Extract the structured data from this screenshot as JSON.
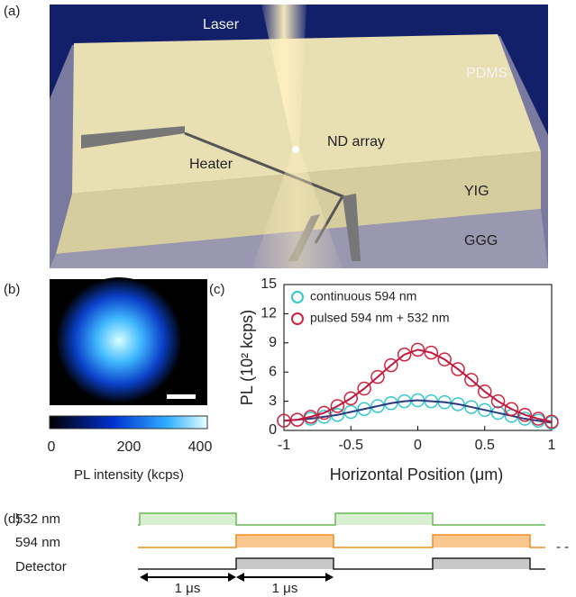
{
  "panel_a": {
    "label": "(a)",
    "laser": "Laser",
    "pdms": "PDMS",
    "nd_array": "ND array",
    "heater": "Heater",
    "yig": "YIG",
    "ggg": "GGG"
  },
  "panel_b": {
    "label": "(b)",
    "colorbar_ticks": [
      0,
      200,
      400
    ],
    "colorbar_label": "PL intensity (kcps)"
  },
  "chart_data": {
    "type": "line",
    "panel_label": "(c)",
    "x_label": "Horizontal Position (μm)",
    "y_label": "PL (10² kcps)",
    "x": [
      -1,
      -0.9,
      -0.8,
      -0.7,
      -0.6,
      -0.5,
      -0.4,
      -0.3,
      -0.2,
      -0.1,
      0,
      0.1,
      0.2,
      0.3,
      0.4,
      0.5,
      0.6,
      0.7,
      0.8,
      0.9,
      1
    ],
    "series": [
      {
        "name": "continuous 594 nm",
        "color": "#35c7d0",
        "line_color": "#2a3a80",
        "values": [
          1.0,
          1.1,
          1.2,
          1.4,
          1.6,
          1.9,
          2.2,
          2.5,
          2.8,
          3.0,
          3.1,
          3.0,
          2.9,
          2.7,
          2.4,
          2.1,
          1.8,
          1.5,
          1.2,
          1.0,
          0.8
        ]
      },
      {
        "name": "pulsed 594 nm + 532 nm",
        "color": "#d0243c",
        "line_color": "#c01a40",
        "values": [
          1.0,
          1.1,
          1.4,
          1.8,
          2.5,
          3.3,
          4.3,
          5.5,
          6.7,
          7.8,
          8.3,
          8.0,
          7.3,
          6.3,
          5.2,
          4.0,
          3.0,
          2.2,
          1.6,
          1.2,
          0.9
        ]
      }
    ],
    "xlim": [
      -1,
      1
    ],
    "xticks": [
      -1,
      -0.5,
      0,
      0.5,
      1
    ],
    "ylim": [
      0,
      15
    ],
    "yticks": [
      0,
      3,
      6,
      9,
      12,
      15
    ],
    "legend": "upper left"
  },
  "panel_d": {
    "label": "(d)",
    "rows": [
      "532 nm",
      "594 nm",
      "Detector"
    ],
    "interval_labels": [
      "1 μs",
      "1 μs"
    ],
    "ellipsis": "- -"
  }
}
